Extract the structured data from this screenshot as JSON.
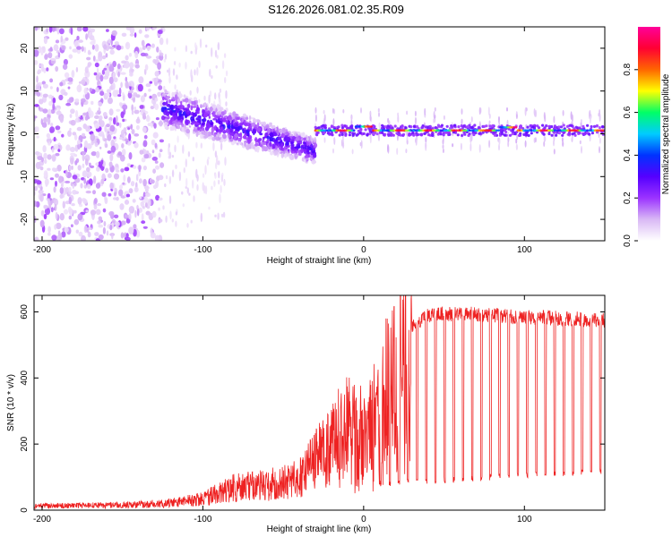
{
  "figure": {
    "title": "S126.2026.081.02.35.R09"
  },
  "chart_data": [
    {
      "type": "heatmap",
      "name": "spectrogram",
      "xlabel": "Height of straight line (km)",
      "ylabel": "Frequency (Hz)",
      "xlim": [
        -205,
        150
      ],
      "ylim": [
        -25,
        25
      ],
      "xticks": [
        -200,
        -100,
        0,
        100
      ],
      "yticks": [
        -20,
        -10,
        0,
        10,
        20
      ],
      "colorbar": {
        "label": "Normalized spectral amplitude",
        "range": [
          0,
          1
        ],
        "ticks": [
          0.0,
          0.2,
          0.4,
          0.6,
          0.8
        ],
        "colormap": [
          "#ffffff",
          "#d9b8f5",
          "#9b33ff",
          "#5500ff",
          "#0033ff",
          "#00ccff",
          "#00ff66",
          "#ffff00",
          "#ff6600",
          "#ff0033",
          "#ff0099"
        ]
      },
      "features": [
        {
          "region": "noise",
          "x_range": [
            -205,
            -125
          ],
          "freq_range": [
            -25,
            25
          ],
          "amplitude": 0.05
        },
        {
          "region": "descending_band",
          "x_range": [
            -125,
            -30
          ],
          "freq_start": 6,
          "freq_end": -4,
          "amplitude": 0.2
        },
        {
          "region": "steady_line",
          "x_range": [
            -30,
            150
          ],
          "freq": 0.8,
          "amplitude": 0.9
        }
      ]
    },
    {
      "type": "line",
      "name": "snr",
      "xlabel": "Height of straight line (km)",
      "ylabel": "SNR (10 * v/v)",
      "xlim": [
        -205,
        150
      ],
      "ylim": [
        0,
        650
      ],
      "xticks": [
        -200,
        -100,
        0,
        100
      ],
      "yticks": [
        0,
        200,
        400,
        600
      ],
      "series": [
        {
          "name": "SNR",
          "color": "#ee2222",
          "x_range": [
            -205,
            150
          ],
          "envelope_x": [
            -205,
            -150,
            -120,
            -100,
            -80,
            -60,
            -40,
            -30,
            -20,
            -10,
            0,
            10,
            20,
            30,
            40,
            60,
            100,
            150
          ],
          "envelope_y": [
            15,
            18,
            25,
            40,
            80,
            90,
            110,
            180,
            220,
            260,
            230,
            320,
            430,
            550,
            590,
            595,
            585,
            575
          ],
          "dropouts": {
            "x_start": 10,
            "x_end": 150,
            "spacing_km": 5.7,
            "floor_start": 70,
            "floor_end": 110
          }
        }
      ]
    }
  ]
}
